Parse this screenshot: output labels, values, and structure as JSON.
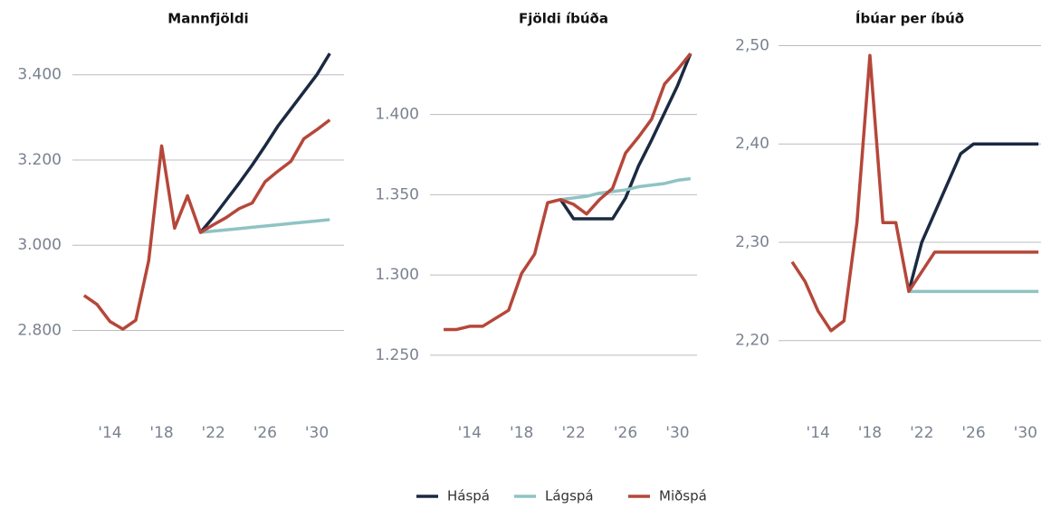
{
  "chart_data": [
    {
      "type": "line",
      "title": "Mannfjöldi",
      "x": [
        2012,
        2013,
        2014,
        2015,
        2016,
        2017,
        2018,
        2019,
        2020,
        2021,
        2022,
        2023,
        2024,
        2025,
        2026,
        2027,
        2028,
        2029,
        2030,
        2031
      ],
      "xlim": [
        2011.1,
        2032.1
      ],
      "xticks": [
        {
          "value": 2014,
          "label": "'14"
        },
        {
          "value": 2018,
          "label": "'18"
        },
        {
          "value": 2022,
          "label": "'22"
        },
        {
          "value": 2026,
          "label": "'26"
        },
        {
          "value": 2030,
          "label": "'30"
        }
      ],
      "ylim": [
        2610,
        3480
      ],
      "yticks": [
        {
          "value": 2800,
          "label": "2.800"
        },
        {
          "value": 3000,
          "label": "3.000"
        },
        {
          "value": 3200,
          "label": "3.200"
        },
        {
          "value": 3400,
          "label": "3.400"
        }
      ],
      "grid": true,
      "series": [
        {
          "name": "Háspá",
          "color": "#1b2a41",
          "values": [
            null,
            null,
            null,
            null,
            null,
            null,
            null,
            null,
            null,
            3030,
            3066,
            3106,
            3146,
            3188,
            3233,
            3280,
            3320,
            3360,
            3400,
            3450
          ]
        },
        {
          "name": "Lágspá",
          "color": "#8fc3c4",
          "values": [
            null,
            null,
            null,
            null,
            null,
            null,
            null,
            null,
            null,
            3030,
            3033,
            3036,
            3039,
            3042,
            3045,
            3048,
            3051,
            3054,
            3057,
            3060
          ]
        },
        {
          "name": "Miðspá",
          "color": "#b5473a",
          "values": [
            2882,
            2861,
            2821,
            2803,
            2824,
            2964,
            3233,
            3040,
            3116,
            3030,
            3048,
            3065,
            3086,
            3099,
            3149,
            3174,
            3197,
            3250,
            3271,
            3294
          ]
        }
      ]
    },
    {
      "type": "line",
      "title": "Fjöldi íbúða",
      "x": [
        2012,
        2013,
        2014,
        2015,
        2016,
        2017,
        2018,
        2019,
        2020,
        2021,
        2022,
        2023,
        2024,
        2025,
        2026,
        2027,
        2028,
        2029,
        2030,
        2031
      ],
      "xlim": [
        2010.95,
        2031.5
      ],
      "xticks": [
        {
          "value": 2014,
          "label": "'14"
        },
        {
          "value": 2018,
          "label": "'18"
        },
        {
          "value": 2022,
          "label": "'22"
        },
        {
          "value": 2026,
          "label": "'26"
        },
        {
          "value": 2030,
          "label": "'30"
        }
      ],
      "ylim": [
        1215,
        1446
      ],
      "yticks": [
        {
          "value": 1250,
          "label": "1.250"
        },
        {
          "value": 1300,
          "label": "1.300"
        },
        {
          "value": 1350,
          "label": "1.350"
        },
        {
          "value": 1400,
          "label": "1.400"
        }
      ],
      "grid": true,
      "series": [
        {
          "name": "Háspá",
          "color": "#1b2a41",
          "values": [
            null,
            null,
            null,
            null,
            null,
            null,
            null,
            null,
            null,
            1347,
            1335,
            1335,
            1335,
            1335,
            1348,
            1368,
            1384,
            1401,
            1418,
            1438
          ]
        },
        {
          "name": "Lágspá",
          "color": "#8fc3c4",
          "values": [
            null,
            null,
            null,
            null,
            null,
            null,
            null,
            null,
            null,
            1347,
            1348,
            1349,
            1351,
            1352,
            1353,
            1355,
            1356,
            1357,
            1359,
            1360
          ]
        },
        {
          "name": "Miðspá",
          "color": "#b5473a",
          "values": [
            1266,
            1266,
            1268,
            1268,
            1273,
            1278,
            1301,
            1313,
            1345,
            1347,
            1344,
            1338,
            1347,
            1354,
            1376,
            1386,
            1397,
            1419,
            1428,
            1438
          ]
        }
      ]
    },
    {
      "type": "line",
      "title": "Íbúar per íbúð",
      "x": [
        2012,
        2013,
        2014,
        2015,
        2016,
        2017,
        2018,
        2019,
        2020,
        2021,
        2022,
        2023,
        2024,
        2025,
        2026,
        2027,
        2028,
        2029,
        2030,
        2031
      ],
      "xlim": [
        2010.95,
        2031.2
      ],
      "xticks": [
        {
          "value": 2014,
          "label": "'14"
        },
        {
          "value": 2018,
          "label": "'18"
        },
        {
          "value": 2022,
          "label": "'22"
        },
        {
          "value": 2026,
          "label": "'26"
        },
        {
          "value": 2030,
          "label": "'30"
        }
      ],
      "ylim": [
        2.128,
        2.505
      ],
      "yticks": [
        {
          "value": 2.2,
          "label": "2,20"
        },
        {
          "value": 2.3,
          "label": "2,30"
        },
        {
          "value": 2.4,
          "label": "2,40"
        },
        {
          "value": 2.5,
          "label": "2,50"
        }
      ],
      "grid": true,
      "series": [
        {
          "name": "Háspá",
          "color": "#1b2a41",
          "values": [
            null,
            null,
            null,
            null,
            null,
            null,
            null,
            null,
            null,
            2.25,
            2.3,
            2.33,
            2.36,
            2.39,
            2.4,
            2.4,
            2.4,
            2.4,
            2.4,
            2.4
          ]
        },
        {
          "name": "Lágspá",
          "color": "#8fc3c4",
          "values": [
            null,
            null,
            null,
            null,
            null,
            null,
            null,
            null,
            null,
            2.25,
            2.25,
            2.25,
            2.25,
            2.25,
            2.25,
            2.25,
            2.25,
            2.25,
            2.25,
            2.25
          ]
        },
        {
          "name": "Miðspá",
          "color": "#b5473a",
          "values": [
            2.28,
            2.26,
            2.23,
            2.21,
            2.22,
            2.32,
            2.49,
            2.32,
            2.32,
            2.25,
            2.27,
            2.29,
            2.29,
            2.29,
            2.29,
            2.29,
            2.29,
            2.29,
            2.29,
            2.29
          ]
        }
      ]
    }
  ]
}
